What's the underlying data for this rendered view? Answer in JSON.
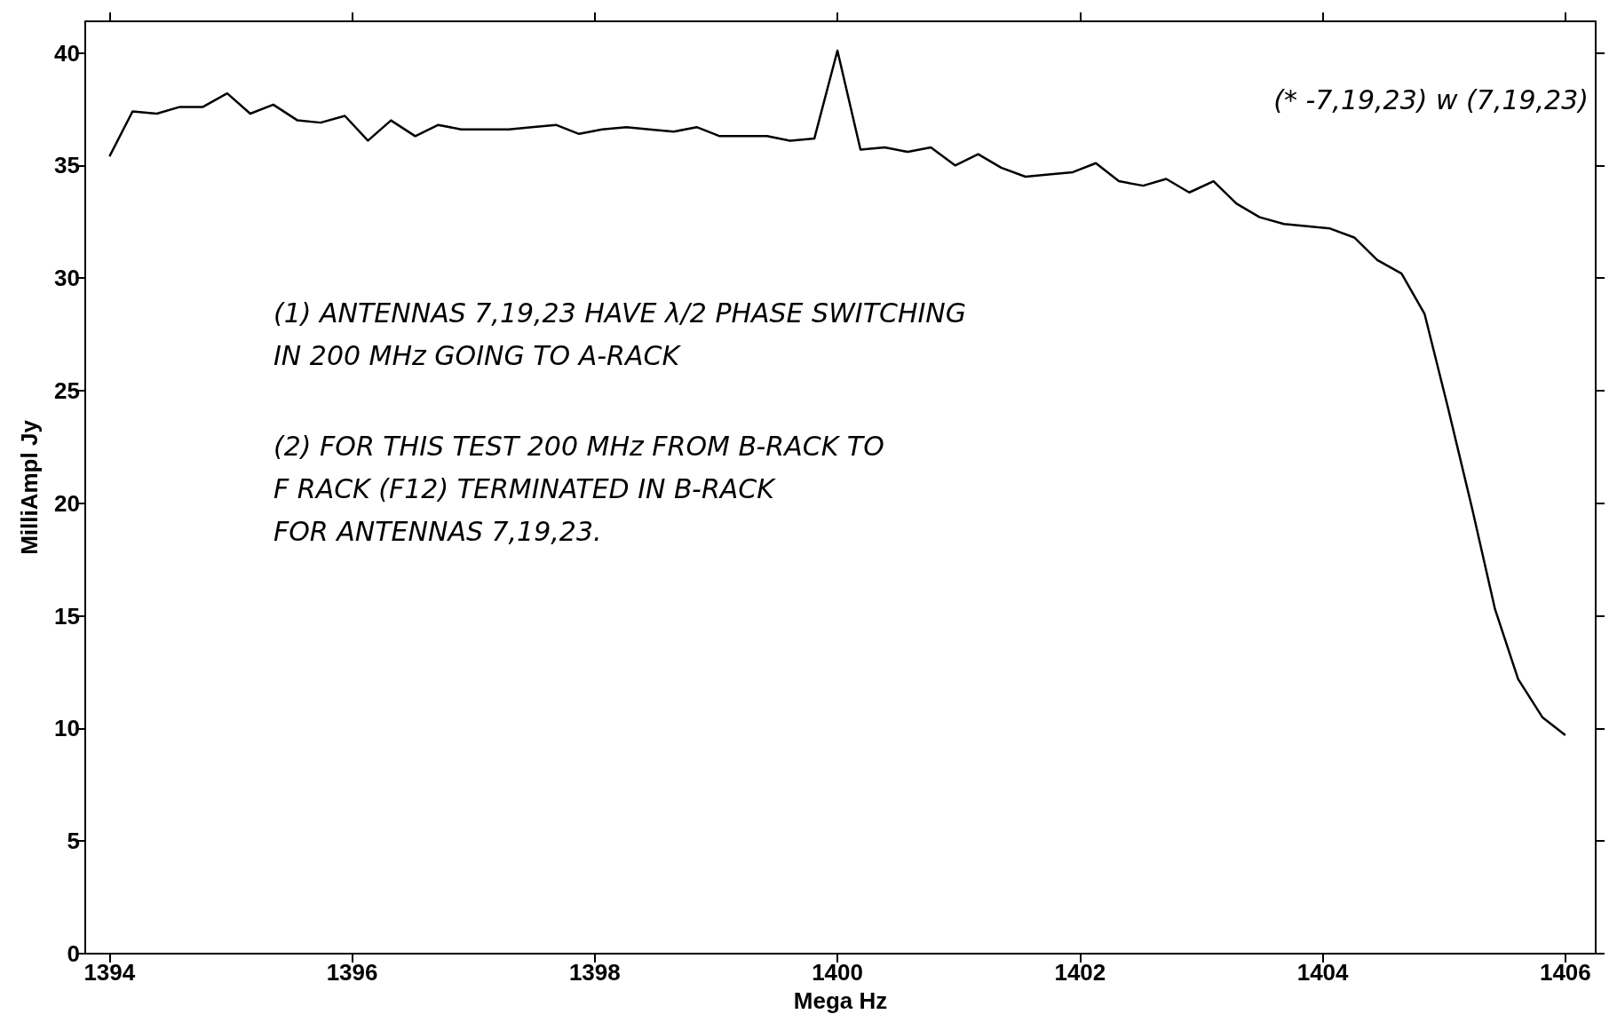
{
  "chart_data": {
    "type": "line",
    "xlabel": "Mega Hz",
    "ylabel": "MilliAmpl Jy",
    "annotations": [
      "(* -7,19,23) w (7,19,23)",
      "(1) ANTENNAS 7,19,23 HAVE λ/2 PHASE SWITCHING\nIN 200 MHz GOING TO A-RACK",
      "(2) FOR THIS TEST 200 MHz FROM B-RACK TO\nF RACK (F12) TERMINATED IN B-RACK\nFOR ANTENNAS 7,19,23."
    ],
    "xlim": [
      1393.8,
      1406.25
    ],
    "xticks": [
      1394,
      1396,
      1398,
      1400,
      1402,
      1404,
      1406
    ],
    "ylim": [
      0,
      41.4
    ],
    "yticks": [
      0,
      5,
      10,
      15,
      20,
      25,
      30,
      35,
      40
    ],
    "grid": false,
    "marker": "none",
    "line_style": "solid",
    "series": [
      {
        "color": "#000000",
        "x": [
          1394.0,
          1394.19,
          1394.39,
          1394.58,
          1394.77,
          1394.97,
          1395.16,
          1395.35,
          1395.55,
          1395.74,
          1395.94,
          1396.13,
          1396.32,
          1396.52,
          1396.71,
          1396.9,
          1397.1,
          1397.29,
          1397.48,
          1397.68,
          1397.87,
          1398.06,
          1398.26,
          1398.45,
          1398.65,
          1398.84,
          1399.03,
          1399.23,
          1399.42,
          1399.61,
          1399.81,
          1400.0,
          1400.19,
          1400.39,
          1400.58,
          1400.77,
          1400.97,
          1401.16,
          1401.35,
          1401.55,
          1401.74,
          1401.94,
          1402.13,
          1402.32,
          1402.52,
          1402.71,
          1402.9,
          1403.1,
          1403.29,
          1403.48,
          1403.68,
          1403.87,
          1404.06,
          1404.26,
          1404.45,
          1404.65,
          1404.84,
          1405.03,
          1405.23,
          1405.42,
          1405.61,
          1405.81,
          1406.0
        ],
        "values": [
          35.4,
          37.4,
          37.3,
          37.6,
          37.6,
          38.2,
          37.3,
          37.7,
          37.0,
          36.9,
          37.2,
          36.1,
          37.0,
          36.3,
          36.8,
          36.6,
          36.6,
          36.6,
          36.7,
          36.8,
          36.4,
          36.6,
          36.7,
          36.6,
          36.5,
          36.7,
          36.3,
          36.3,
          36.3,
          36.1,
          36.2,
          40.1,
          35.7,
          35.8,
          35.6,
          35.8,
          35.0,
          35.5,
          34.9,
          34.5,
          34.6,
          34.7,
          35.1,
          34.3,
          34.1,
          34.4,
          33.8,
          34.3,
          33.3,
          32.7,
          32.4,
          32.3,
          32.2,
          31.8,
          30.8,
          30.2,
          28.4,
          24.3,
          19.8,
          15.3,
          12.2,
          10.5,
          9.7
        ]
      }
    ]
  }
}
